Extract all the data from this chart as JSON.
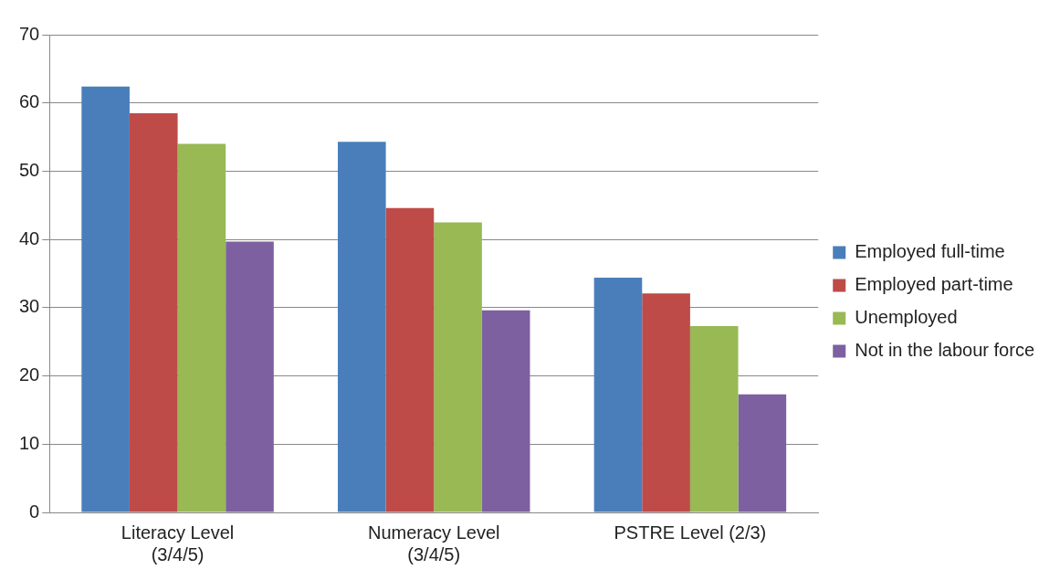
{
  "chart_data": {
    "type": "bar",
    "categories": [
      "Literacy Level (3/4/5)",
      "Numeracy Level (3/4/5)",
      "PSTRE Level (2/3)"
    ],
    "series": [
      {
        "name": "Employed full-time",
        "color": "#4a7ebb",
        "values": [
          62.4,
          54.3,
          34.4
        ]
      },
      {
        "name": "Employed part-time",
        "color": "#be4b48",
        "values": [
          58.5,
          44.6,
          32.1
        ]
      },
      {
        "name": "Unemployed",
        "color": "#98b954",
        "values": [
          54.0,
          42.5,
          27.3
        ]
      },
      {
        "name": "Not in the labour force",
        "color": "#7d60a0",
        "values": [
          39.7,
          29.6,
          17.3
        ]
      }
    ],
    "ylim": [
      0,
      70
    ],
    "yticks": [
      0,
      10,
      20,
      30,
      40,
      50,
      60,
      70
    ],
    "grid": "y",
    "legend": "right"
  }
}
